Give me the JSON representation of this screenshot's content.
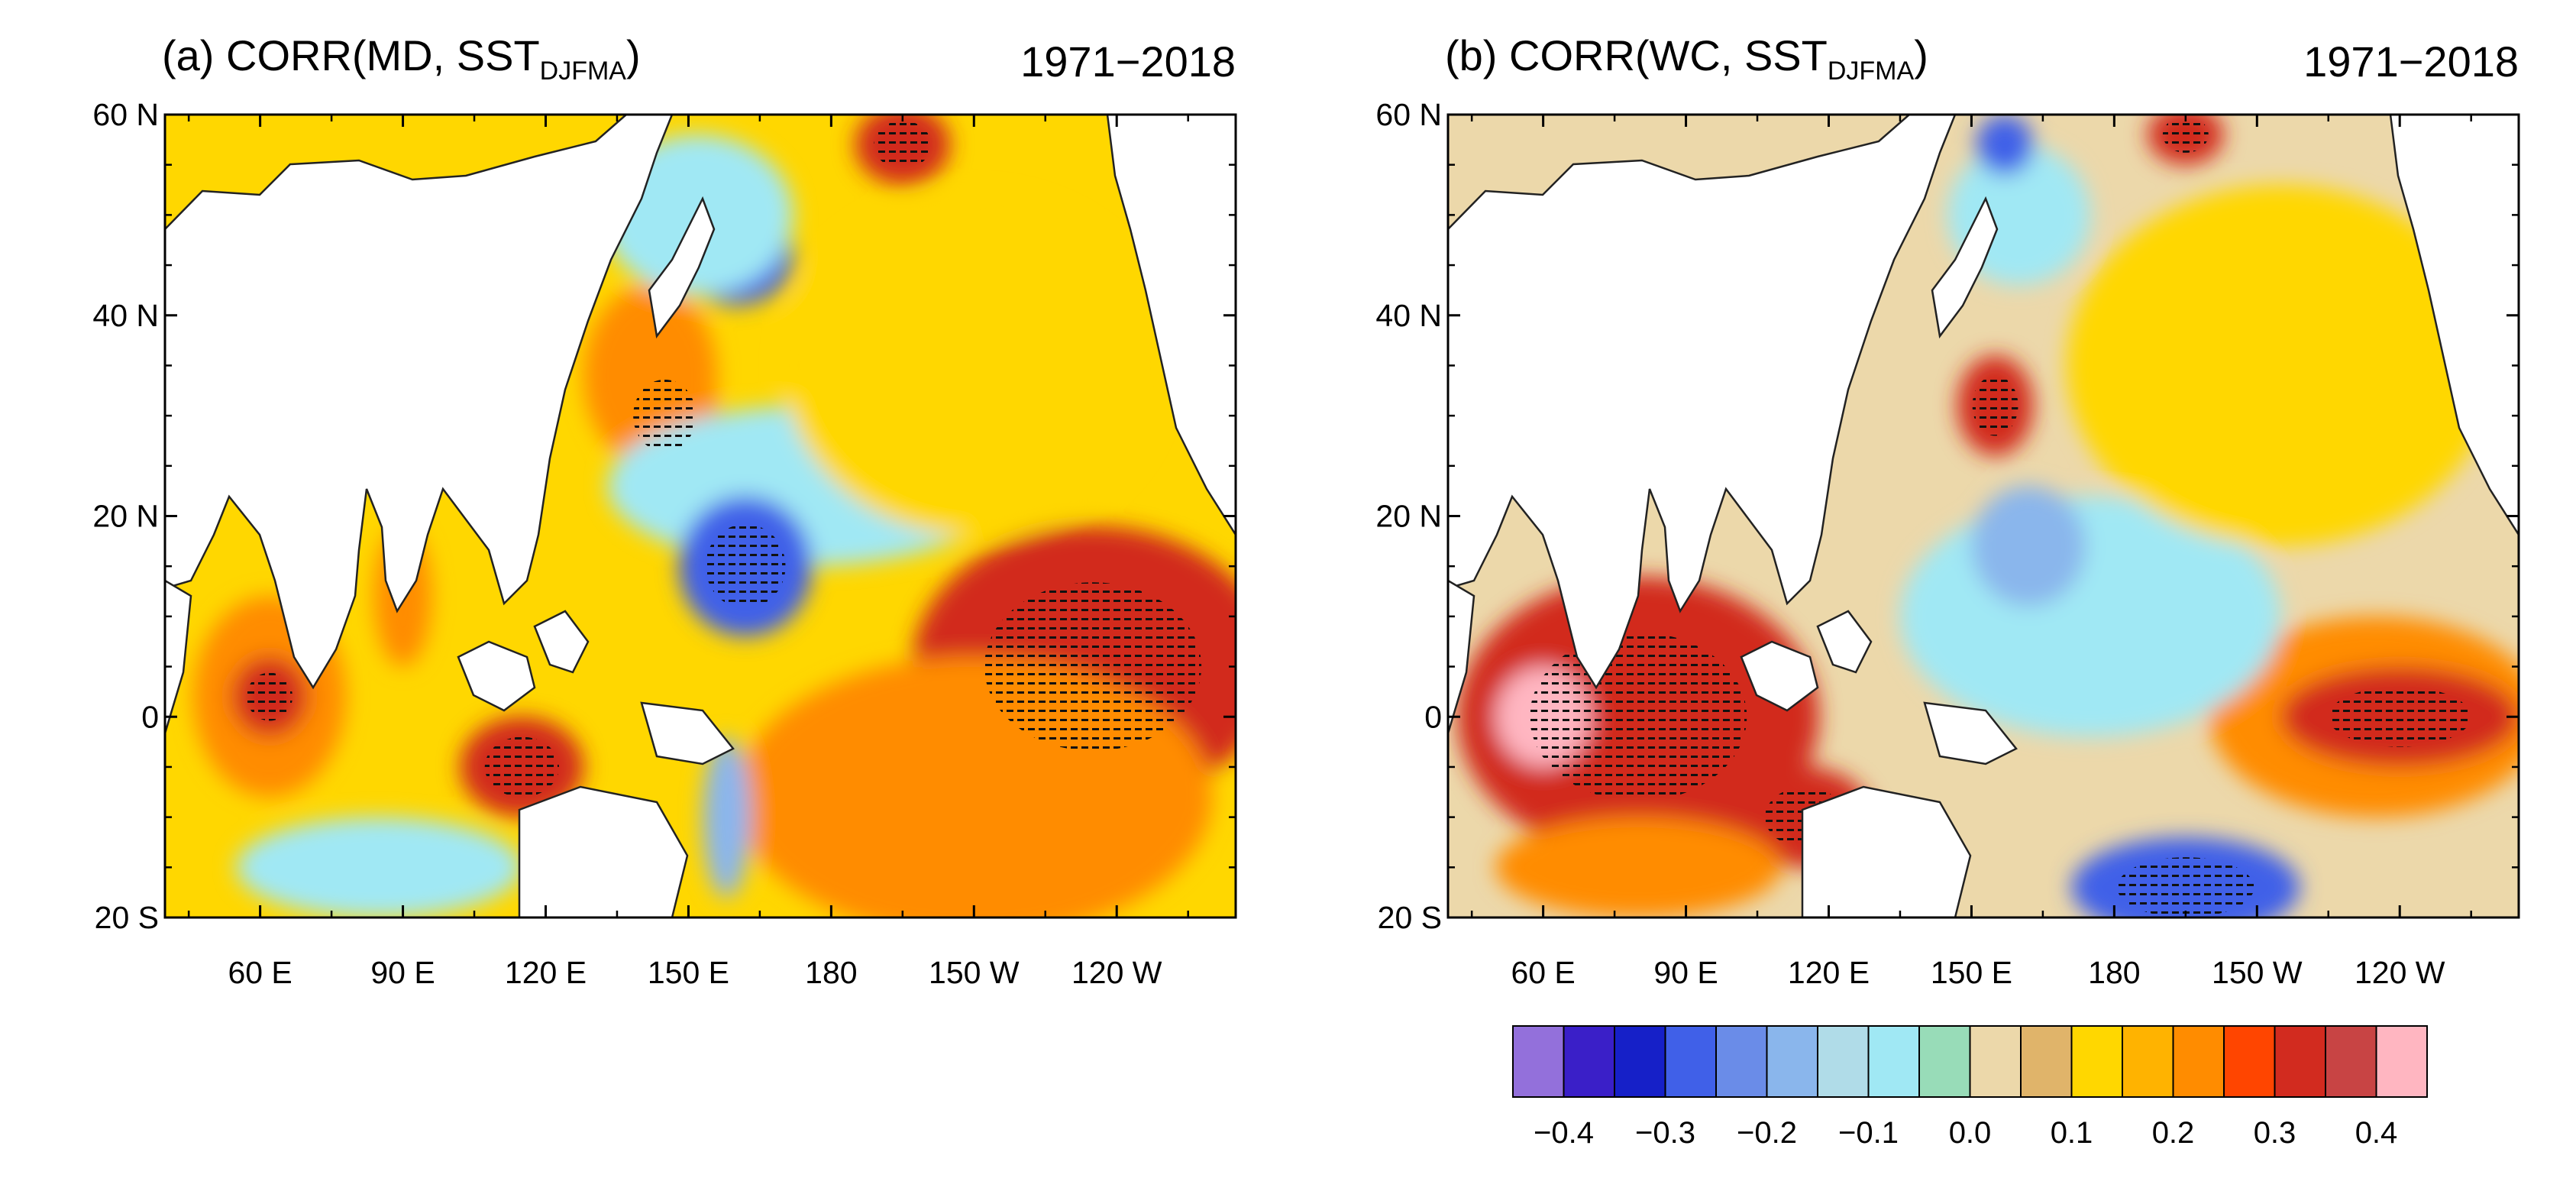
{
  "chart_data": {
    "type": "heatmap",
    "panels": [
      {
        "id": "a",
        "title_prefix": "(a) CORR(MD, SST",
        "title_sub": "DJFMA",
        "title_suffix": ")",
        "period": "1971−2018",
        "lon_range_deg_east": [
          40,
          265
        ],
        "lat_range": [
          -20,
          60
        ],
        "xticks": [
          {
            "lon": 60,
            "label": "60 E"
          },
          {
            "lon": 90,
            "label": "90 E"
          },
          {
            "lon": 120,
            "label": "120 E"
          },
          {
            "lon": 150,
            "label": "150 E"
          },
          {
            "lon": 180,
            "label": "180"
          },
          {
            "lon": 210,
            "label": "150 W"
          },
          {
            "lon": 240,
            "label": "120 W"
          }
        ],
        "yticks": [
          {
            "lat": 60,
            "label": "60 N"
          },
          {
            "lat": 40,
            "label": "40 N"
          },
          {
            "lat": 20,
            "label": "20 N"
          },
          {
            "lat": 0,
            "label": "0"
          },
          {
            "lat": -20,
            "label": "20 S"
          }
        ],
        "background_value": 0.1,
        "regions": [
          {
            "name": "eastern-tropical-pacific",
            "lon": 235,
            "lat": 5,
            "rx": 38,
            "ry": 14,
            "value": 0.3,
            "stipple": true
          },
          {
            "name": "central-south-pacific",
            "lon": 210,
            "lat": -8,
            "rx": 50,
            "ry": 14,
            "value": 0.2
          },
          {
            "name": "east-china-sea",
            "lon": 145,
            "lat": 30,
            "rx": 11,
            "ry": 6,
            "value": 0.3,
            "stipple": true
          },
          {
            "name": "kuroshio-band",
            "lon": 142,
            "lat": 34,
            "rx": 14,
            "ry": 9,
            "value": 0.2
          },
          {
            "name": "western-pacific-band",
            "lon": 175,
            "lat": 23,
            "rx": 42,
            "ry": 8,
            "value": -0.1
          },
          {
            "name": "philippine-sea",
            "lon": 162,
            "lat": 15,
            "rx": 14,
            "ry": 7,
            "value": -0.3,
            "stipple": true
          },
          {
            "name": "north-pacific",
            "lon": 160,
            "lat": 46,
            "rx": 12,
            "ry": 5,
            "value": -0.3
          },
          {
            "name": "north-pacific-edge",
            "lon": 152,
            "lat": 50,
            "rx": 20,
            "ry": 8,
            "value": -0.1
          },
          {
            "name": "central-north-pacific",
            "lon": 210,
            "lat": 35,
            "rx": 40,
            "ry": 17,
            "value": 0.1
          },
          {
            "name": "gulf-of-alaska",
            "lon": 195,
            "lat": 57,
            "rx": 10,
            "ry": 4,
            "value": 0.3,
            "stipple": true
          },
          {
            "name": "arabian-sea",
            "lon": 62,
            "lat": 2,
            "rx": 16,
            "ry": 10,
            "value": 0.2
          },
          {
            "name": "west-indian-ocean",
            "lon": 62,
            "lat": 2,
            "rx": 8,
            "ry": 4,
            "value": 0.3,
            "stipple": true
          },
          {
            "name": "maritime-continent",
            "lon": 115,
            "lat": -5,
            "rx": 13,
            "ry": 5,
            "value": 0.3,
            "stipple": true
          },
          {
            "name": "bay-of-bengal",
            "lon": 90,
            "lat": 12,
            "rx": 6,
            "ry": 7,
            "value": 0.2
          },
          {
            "name": "southern-indian-ocean",
            "lon": 85,
            "lat": -15,
            "rx": 30,
            "ry": 5,
            "value": -0.1
          },
          {
            "name": "south-pacific-convergence",
            "lon": 158,
            "lat": -10,
            "rx": 5,
            "ry": 8,
            "value": -0.2
          }
        ]
      },
      {
        "id": "b",
        "title_prefix": "(b) CORR(WC, SST",
        "title_sub": "DJFMA",
        "title_suffix": ")",
        "period": "1971−2018",
        "lon_range_deg_east": [
          40,
          265
        ],
        "lat_range": [
          -20,
          60
        ],
        "xticks": [
          {
            "lon": 60,
            "label": "60 E"
          },
          {
            "lon": 90,
            "label": "90 E"
          },
          {
            "lon": 120,
            "label": "120 E"
          },
          {
            "lon": 150,
            "label": "150 E"
          },
          {
            "lon": 180,
            "label": "180"
          },
          {
            "lon": 210,
            "label": "150 W"
          },
          {
            "lon": 240,
            "label": "120 W"
          }
        ],
        "yticks": [
          {
            "lat": 60,
            "label": "60 N"
          },
          {
            "lat": 40,
            "label": "40 N"
          },
          {
            "lat": 20,
            "label": "20 N"
          },
          {
            "lat": 0,
            "label": "0"
          },
          {
            "lat": -20,
            "label": "20 S"
          }
        ],
        "background_value": 0.0,
        "regions": [
          {
            "name": "indian-ocean",
            "lon": 80,
            "lat": 0,
            "rx": 38,
            "ry": 14,
            "value": 0.3,
            "stipple": true
          },
          {
            "name": "indian-ocean-core",
            "lon": 60,
            "lat": 0,
            "rx": 10,
            "ry": 5,
            "value": 0.4
          },
          {
            "name": "timor-sea",
            "lon": 115,
            "lat": -10,
            "rx": 14,
            "ry": 5,
            "value": 0.3,
            "stipple": true
          },
          {
            "name": "south-indian-ocean",
            "lon": 80,
            "lat": -15,
            "rx": 30,
            "ry": 5,
            "value": 0.2
          },
          {
            "name": "eastern-tropical-pacific",
            "lon": 235,
            "lat": 0,
            "rx": 35,
            "ry": 10,
            "value": 0.2
          },
          {
            "name": "eastern-tropical-core",
            "lon": 240,
            "lat": 0,
            "rx": 25,
            "ry": 5,
            "value": 0.3,
            "stipple": true
          },
          {
            "name": "south-pacific-tongue",
            "lon": 195,
            "lat": -17,
            "rx": 24,
            "ry": 5,
            "value": -0.3,
            "stipple": true
          },
          {
            "name": "tropical-pacific-band",
            "lon": 175,
            "lat": 10,
            "rx": 40,
            "ry": 12,
            "value": -0.1
          },
          {
            "name": "philippine-sea",
            "lon": 162,
            "lat": 17,
            "rx": 12,
            "ry": 6,
            "value": -0.2
          },
          {
            "name": "kuroshio-extension",
            "lon": 155,
            "lat": 31,
            "rx": 8,
            "ry": 5,
            "value": 0.3,
            "stipple": true
          },
          {
            "name": "north-pacific",
            "lon": 215,
            "lat": 35,
            "rx": 45,
            "ry": 18,
            "value": 0.1
          },
          {
            "name": "north-pacific-west",
            "lon": 160,
            "lat": 50,
            "rx": 15,
            "ry": 7,
            "value": -0.1
          },
          {
            "name": "okhotsk",
            "lon": 157,
            "lat": 57,
            "rx": 6,
            "ry": 3,
            "value": -0.3
          },
          {
            "name": "gulf-of-alaska",
            "lon": 195,
            "lat": 58,
            "rx": 8,
            "ry": 3,
            "value": 0.3,
            "stipple": true
          }
        ]
      }
    ],
    "colorbar": {
      "colors": [
        "#9370db",
        "#3a1fc8",
        "#1620c8",
        "#4060e8",
        "#6a8ce8",
        "#8ab6ec",
        "#b0dce8",
        "#a0e8f4",
        "#98dcb8",
        "#ecd8aa",
        "#e0b46a",
        "#ffd700",
        "#ffb300",
        "#ff8c00",
        "#ff4500",
        "#d22b1f",
        "#c84444",
        "#ffb6c1"
      ],
      "tick_labels": [
        "−0.4",
        "−0.3",
        "−0.2",
        "−0.1",
        "0.0",
        "0.1",
        "0.2",
        "0.3",
        "0.4"
      ],
      "tick_values": [
        -0.4,
        -0.3,
        -0.2,
        -0.1,
        0.0,
        0.1,
        0.2,
        0.3,
        0.4
      ],
      "level_step": 0.05,
      "level_min": -0.45
    }
  }
}
